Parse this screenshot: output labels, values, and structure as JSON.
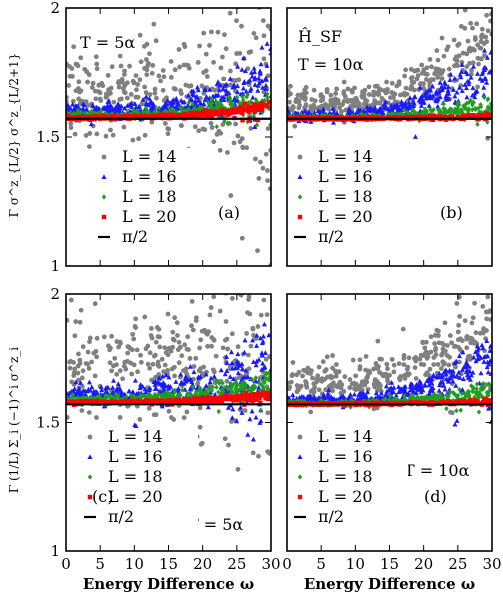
{
  "chart_data": [
    {
      "type": "scatter",
      "panel_label": "(a)",
      "annotations": [
        "T = 5α"
      ],
      "ylabel": "Γ σ^z_{L/2} σ^z_{L/2+1}",
      "xlabel": "",
      "xlim": [
        0,
        30
      ],
      "ylim": [
        1,
        2
      ],
      "yticks": [
        "1",
        "1.5",
        "2"
      ],
      "xticks": [],
      "legend": [
        "L = 14",
        "L = 16",
        "L = 18",
        "L = 20",
        "π/2"
      ],
      "series": [
        {
          "name": "L = 14",
          "color": "#808080",
          "marker": "circle",
          "center": 1.68,
          "spread": 0.08,
          "trend": 0.02,
          "scatter_out": 0.35,
          "n": 330
        },
        {
          "name": "L = 16",
          "color": "#1a1aff",
          "marker": "triangle",
          "center": 1.6,
          "spread": 0.015,
          "trend": 0.14,
          "scatter_out": 0.1,
          "n": 330
        },
        {
          "name": "L = 18",
          "color": "#1f9e1f",
          "marker": "diamond",
          "center": 1.585,
          "spread": 0.008,
          "trend": 0.06,
          "scatter_out": 0.04,
          "n": 300
        },
        {
          "name": "L = 20",
          "color": "#ff0000",
          "marker": "square",
          "center": 1.575,
          "spread": 0.003,
          "trend": 0.05,
          "scatter_out": 0.01,
          "n": 320
        },
        {
          "name": "π/2",
          "color": "#000000",
          "marker": "line",
          "value": 1.5708
        }
      ]
    },
    {
      "type": "scatter",
      "panel_label": "(b)",
      "annotations": [
        "Ĥ_SF",
        "T = 10α"
      ],
      "ylabel": "",
      "xlabel": "",
      "xlim": [
        0,
        30
      ],
      "ylim": [
        1,
        2
      ],
      "yticks": [],
      "xticks": [],
      "legend": [
        "L = 14",
        "L = 16",
        "L = 18",
        "L = 20",
        "π/2"
      ],
      "series": [
        {
          "name": "L = 14",
          "color": "#808080",
          "marker": "circle",
          "center": 1.63,
          "spread": 0.03,
          "trend": 0.3,
          "scatter_out": 0.12,
          "n": 330
        },
        {
          "name": "L = 16",
          "color": "#1a1aff",
          "marker": "triangle",
          "center": 1.58,
          "spread": 0.01,
          "trend": 0.2,
          "scatter_out": 0.08,
          "n": 330
        },
        {
          "name": "L = 18",
          "color": "#1f9e1f",
          "marker": "diamond",
          "center": 1.575,
          "spread": 0.004,
          "trend": 0.05,
          "scatter_out": 0.03,
          "n": 300
        },
        {
          "name": "L = 20",
          "color": "#ff0000",
          "marker": "square",
          "center": 1.572,
          "spread": 0.002,
          "trend": 0.01,
          "scatter_out": 0.005,
          "n": 320
        },
        {
          "name": "π/2",
          "color": "#000000",
          "marker": "line",
          "value": 1.5708
        }
      ]
    },
    {
      "type": "scatter",
      "panel_label": "(c)",
      "annotations": [
        "T = 5α"
      ],
      "ylabel": "Γ (1/L) Σ_i (−1)^i σ^z_i",
      "xlabel": "Energy Difference ω",
      "xlim": [
        0,
        30
      ],
      "ylim": [
        1,
        2
      ],
      "yticks": [
        "1",
        "1.5",
        "2"
      ],
      "xticks": [
        "0",
        "5",
        "10",
        "15",
        "20",
        "25",
        "30"
      ],
      "legend": [
        "L = 14",
        "L = 16",
        "L = 18",
        "L = 20",
        "π/2"
      ],
      "series": [
        {
          "name": "L = 14",
          "color": "#808080",
          "marker": "circle",
          "center": 1.72,
          "spread": 0.1,
          "trend": 0.0,
          "scatter_out": 0.35,
          "n": 330
        },
        {
          "name": "L = 16",
          "color": "#1a1aff",
          "marker": "triangle",
          "center": 1.61,
          "spread": 0.02,
          "trend": 0.12,
          "scatter_out": 0.15,
          "n": 330
        },
        {
          "name": "L = 18",
          "color": "#1f9e1f",
          "marker": "diamond",
          "center": 1.59,
          "spread": 0.008,
          "trend": 0.06,
          "scatter_out": 0.05,
          "n": 300
        },
        {
          "name": "L = 20",
          "color": "#ff0000",
          "marker": "square",
          "center": 1.578,
          "spread": 0.003,
          "trend": 0.03,
          "scatter_out": 0.01,
          "n": 320
        },
        {
          "name": "π/2",
          "color": "#000000",
          "marker": "line",
          "value": 1.5708
        }
      ]
    },
    {
      "type": "scatter",
      "panel_label": "(d)",
      "annotations": [
        "T = 10α"
      ],
      "ylabel": "",
      "xlabel": "Energy Difference ω",
      "xlim": [
        0,
        30
      ],
      "ylim": [
        1,
        2
      ],
      "yticks": [],
      "xticks": [
        "0",
        "5",
        "10",
        "15",
        "20",
        "25",
        "30"
      ],
      "legend": [
        "L = 14",
        "L = 16",
        "L = 18",
        "L = 20",
        "π/2"
      ],
      "series": [
        {
          "name": "L = 14",
          "color": "#808080",
          "marker": "circle",
          "center": 1.65,
          "spread": 0.04,
          "trend": 0.25,
          "scatter_out": 0.1,
          "n": 330
        },
        {
          "name": "L = 16",
          "color": "#1a1aff",
          "marker": "triangle",
          "center": 1.585,
          "spread": 0.01,
          "trend": 0.18,
          "scatter_out": 0.08,
          "n": 330
        },
        {
          "name": "L = 18",
          "color": "#1f9e1f",
          "marker": "diamond",
          "center": 1.575,
          "spread": 0.004,
          "trend": 0.05,
          "scatter_out": 0.03,
          "n": 300
        },
        {
          "name": "L = 20",
          "color": "#ff0000",
          "marker": "square",
          "center": 1.572,
          "spread": 0.002,
          "trend": 0.01,
          "scatter_out": 0.005,
          "n": 320
        },
        {
          "name": "π/2",
          "color": "#000000",
          "marker": "line",
          "value": 1.5708
        }
      ]
    }
  ]
}
